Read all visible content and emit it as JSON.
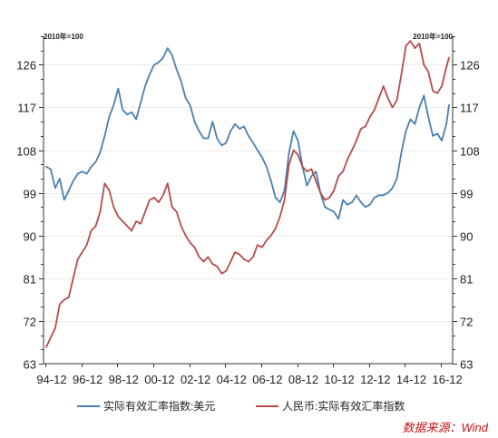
{
  "chart_data": {
    "type": "line",
    "title": "",
    "unit_left": "2010年=100",
    "unit_right": "2010年=100",
    "xlabel": "",
    "ylabel": "",
    "ylim": [
      63,
      132
    ],
    "yticks": [
      63,
      72,
      81,
      90,
      99,
      108,
      117,
      126
    ],
    "ytick_labels": [
      "63",
      "72",
      "81",
      "90",
      "99",
      "108",
      "117",
      "126"
    ],
    "x_range": [
      1994.85,
      2017.6
    ],
    "xtick_positions": [
      1994.95,
      1996.95,
      1998.95,
      2000.95,
      2002.95,
      2004.95,
      2006.95,
      2008.95,
      2010.95,
      2012.95,
      2014.95,
      2016.95
    ],
    "xtick_labels": [
      "94-12",
      "96-12",
      "98-12",
      "00-12",
      "02-12",
      "04-12",
      "06-12",
      "08-12",
      "10-12",
      "12-12",
      "14-12",
      "16-12"
    ],
    "grid": true,
    "legend_position": "bottom",
    "series": [
      {
        "name": "实际有效汇率指数:美元",
        "color": "#4a7fb0",
        "x": [
          1995.0,
          1995.25,
          1995.5,
          1995.75,
          1996.0,
          1996.25,
          1996.5,
          1996.75,
          1997.0,
          1997.25,
          1997.5,
          1997.75,
          1998.0,
          1998.25,
          1998.5,
          1998.75,
          1999.0,
          1999.25,
          1999.5,
          1999.75,
          2000.0,
          2000.25,
          2000.5,
          2000.75,
          2001.0,
          2001.25,
          2001.5,
          2001.75,
          2002.0,
          2002.25,
          2002.5,
          2002.75,
          2003.0,
          2003.25,
          2003.5,
          2003.75,
          2004.0,
          2004.25,
          2004.5,
          2004.75,
          2005.0,
          2005.25,
          2005.5,
          2005.75,
          2006.0,
          2006.25,
          2006.5,
          2006.75,
          2007.0,
          2007.25,
          2007.5,
          2007.75,
          2008.0,
          2008.25,
          2008.5,
          2008.75,
          2009.0,
          2009.25,
          2009.5,
          2009.75,
          2010.0,
          2010.25,
          2010.5,
          2010.75,
          2011.0,
          2011.25,
          2011.5,
          2011.75,
          2012.0,
          2012.25,
          2012.5,
          2012.75,
          2013.0,
          2013.25,
          2013.5,
          2013.75,
          2014.0,
          2014.25,
          2014.5,
          2014.75,
          2015.0,
          2015.25,
          2015.5,
          2015.75,
          2016.0,
          2016.25,
          2016.5,
          2016.75,
          2017.0,
          2017.25,
          2017.4
        ],
        "y": [
          104.5,
          104.0,
          100.0,
          102.0,
          97.5,
          99.5,
          101.5,
          103.0,
          103.5,
          103.0,
          104.5,
          105.5,
          107.5,
          111.0,
          115.0,
          117.5,
          121.0,
          116.5,
          115.5,
          116.0,
          114.5,
          118.0,
          121.5,
          124.0,
          126.0,
          126.5,
          127.5,
          129.5,
          128.0,
          125.0,
          122.5,
          119.0,
          117.5,
          114.0,
          112.0,
          110.5,
          110.5,
          114.0,
          110.5,
          109.0,
          109.5,
          112.0,
          113.5,
          112.5,
          113.0,
          111.0,
          109.5,
          108.0,
          106.5,
          104.5,
          101.5,
          98.0,
          97.0,
          99.5,
          107.5,
          112.0,
          110.0,
          104.5,
          100.5,
          102.5,
          103.5,
          99.0,
          96.0,
          95.5,
          95.0,
          93.5,
          97.5,
          96.5,
          97.0,
          98.5,
          97.0,
          96.0,
          96.5,
          98.0,
          98.5,
          98.5,
          99.0,
          100.0,
          102.0,
          107.5,
          112.0,
          114.5,
          113.5,
          117.0,
          119.5,
          115.0,
          111.0,
          111.5,
          110.0,
          113.5,
          117.5
        ]
      },
      {
        "name": "人民币:实际有效汇率指数",
        "color": "#b84b4b",
        "x": [
          1995.0,
          1995.25,
          1995.5,
          1995.75,
          1996.0,
          1996.25,
          1996.5,
          1996.75,
          1997.0,
          1997.25,
          1997.5,
          1997.75,
          1998.0,
          1998.25,
          1998.5,
          1998.75,
          1999.0,
          1999.25,
          1999.5,
          1999.75,
          2000.0,
          2000.25,
          2000.5,
          2000.75,
          2001.0,
          2001.25,
          2001.5,
          2001.75,
          2002.0,
          2002.25,
          2002.5,
          2002.75,
          2003.0,
          2003.25,
          2003.5,
          2003.75,
          2004.0,
          2004.25,
          2004.5,
          2004.75,
          2005.0,
          2005.25,
          2005.5,
          2005.75,
          2006.0,
          2006.25,
          2006.5,
          2006.75,
          2007.0,
          2007.25,
          2007.5,
          2007.75,
          2008.0,
          2008.25,
          2008.5,
          2008.75,
          2009.0,
          2009.25,
          2009.5,
          2009.75,
          2010.0,
          2010.25,
          2010.5,
          2010.75,
          2011.0,
          2011.25,
          2011.5,
          2011.75,
          2012.0,
          2012.25,
          2012.5,
          2012.75,
          2013.0,
          2013.25,
          2013.5,
          2013.75,
          2014.0,
          2014.25,
          2014.5,
          2014.75,
          2015.0,
          2015.25,
          2015.5,
          2015.75,
          2016.0,
          2016.25,
          2016.5,
          2016.75,
          2017.0,
          2017.25,
          2017.4
        ],
        "y": [
          66.5,
          68.5,
          70.5,
          75.5,
          76.5,
          77.0,
          81.0,
          85.0,
          86.5,
          88.0,
          91.0,
          92.0,
          95.0,
          101.0,
          99.5,
          96.0,
          94.0,
          93.0,
          92.0,
          91.0,
          93.0,
          92.5,
          95.0,
          97.5,
          98.0,
          97.0,
          98.5,
          101.0,
          96.0,
          95.0,
          92.0,
          90.0,
          88.5,
          87.5,
          85.5,
          84.5,
          85.5,
          84.0,
          83.5,
          82.0,
          82.5,
          84.5,
          86.5,
          86.0,
          85.0,
          84.5,
          85.5,
          88.0,
          87.5,
          89.0,
          90.0,
          91.5,
          94.0,
          97.5,
          105.0,
          108.0,
          107.0,
          104.5,
          103.5,
          104.0,
          101.5,
          99.0,
          97.5,
          98.0,
          99.5,
          102.5,
          103.5,
          106.0,
          108.0,
          110.0,
          112.5,
          113.0,
          115.0,
          116.5,
          119.0,
          121.5,
          119.0,
          117.0,
          118.5,
          124.0,
          130.0,
          131.0,
          129.5,
          130.5,
          126.0,
          124.5,
          120.5,
          120.0,
          121.5,
          125.5,
          127.5
        ]
      }
    ],
    "legend": {
      "usd_label": "实际有效汇率指数:美元",
      "cny_label": "人民币:实际有效汇率指数"
    },
    "source": "数据来源：Wind"
  }
}
